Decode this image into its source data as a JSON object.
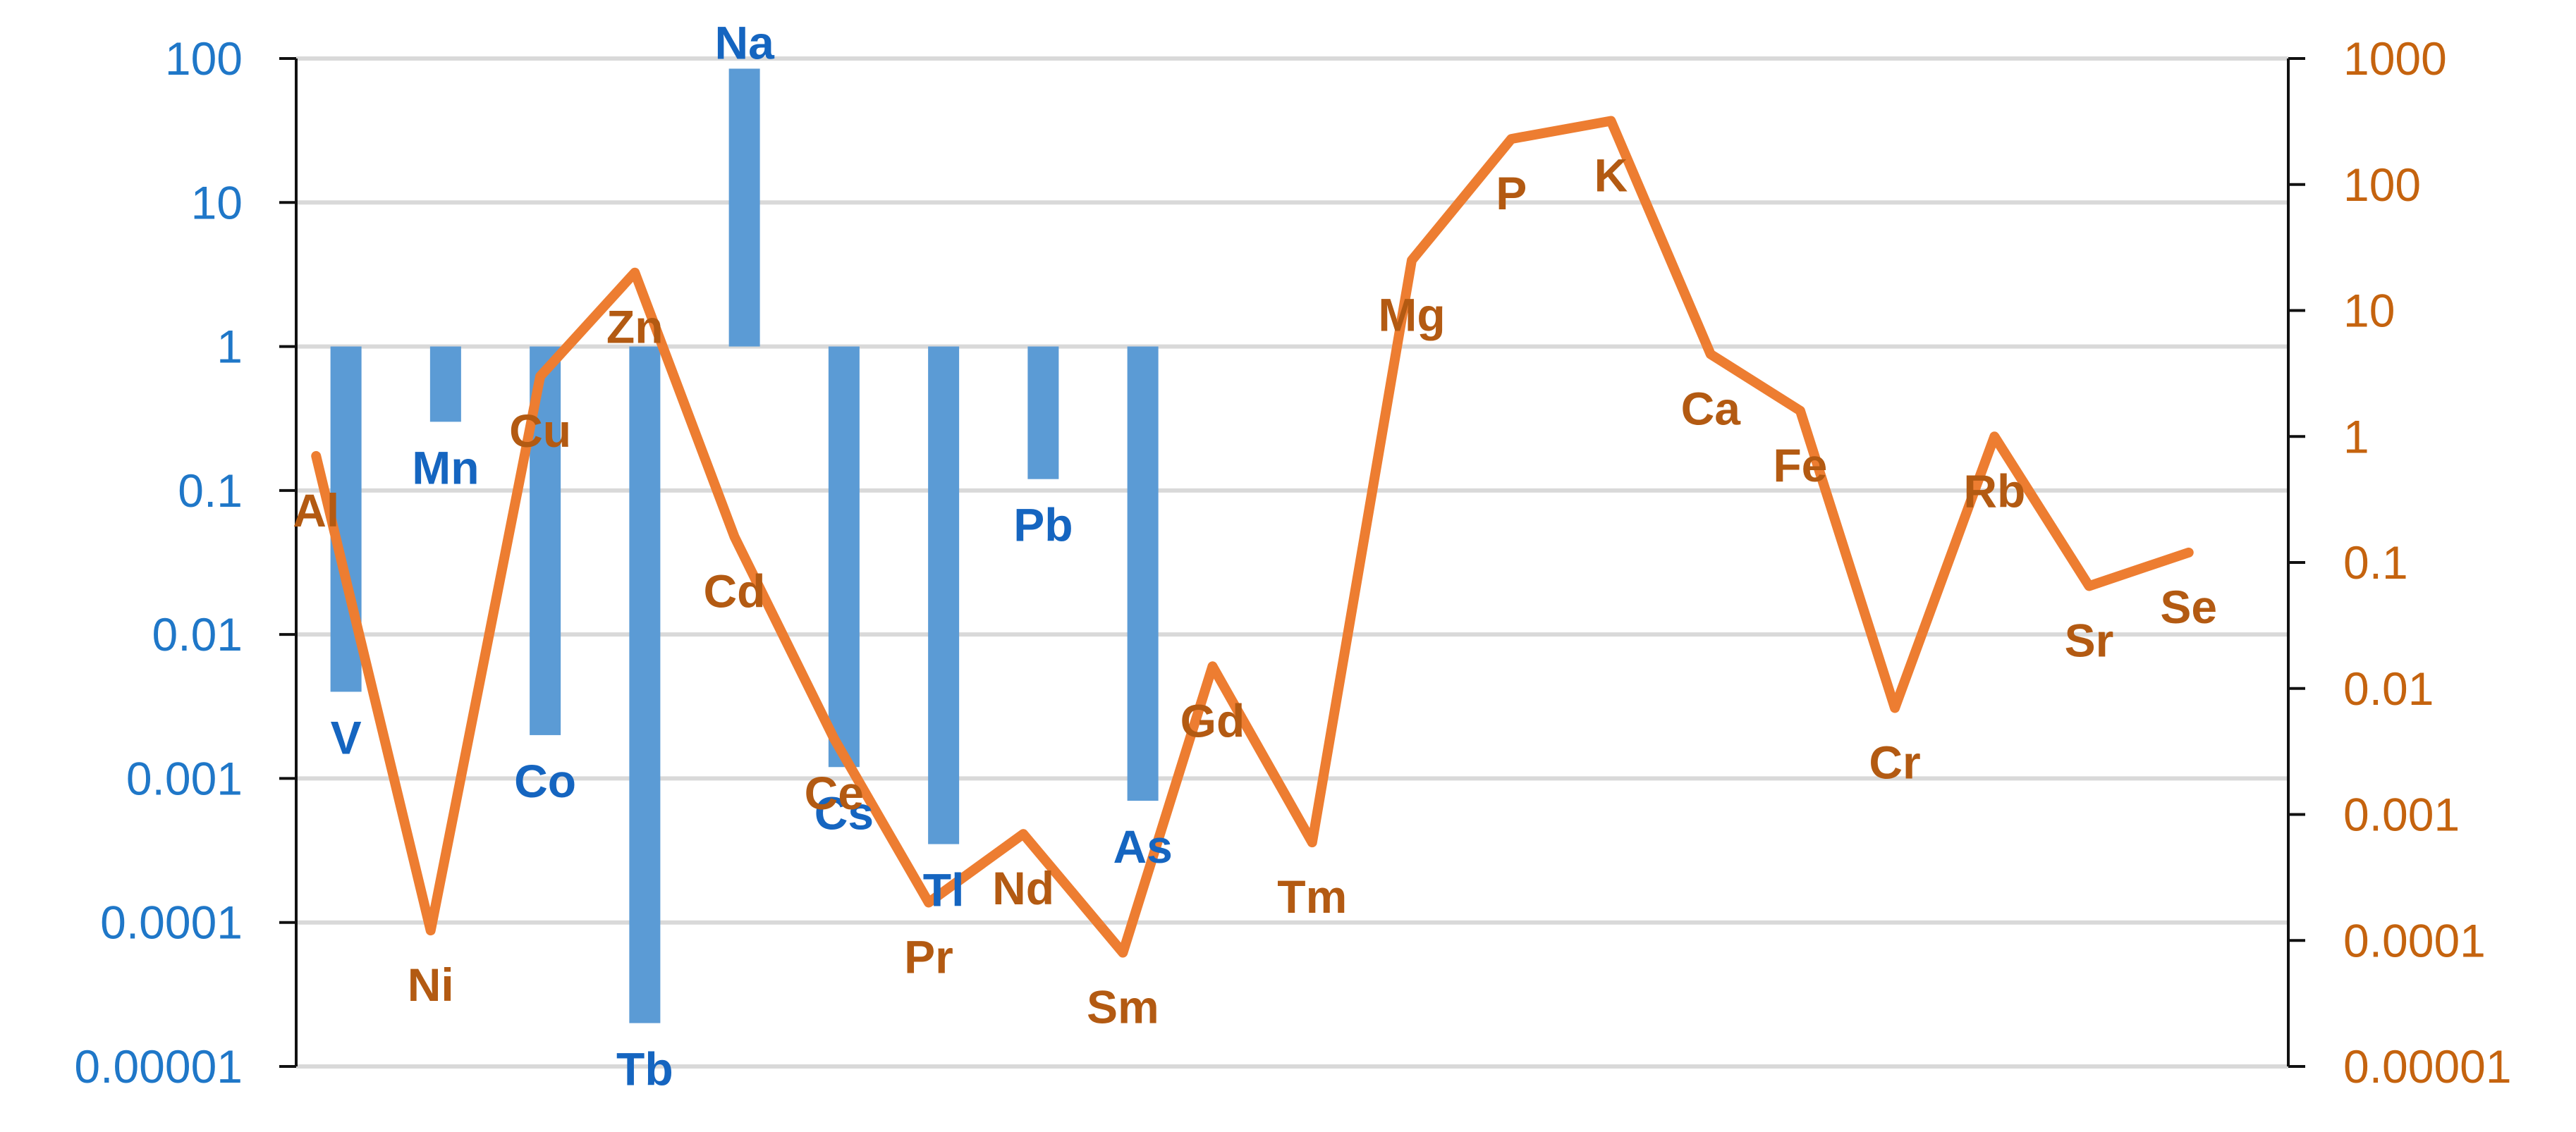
{
  "chart_data": {
    "type": "bar+line",
    "title": "",
    "xlabel": "",
    "y_left": {
      "scale": "log",
      "range": [
        1e-05,
        100
      ],
      "ticks": [
        "100",
        "10",
        "1",
        "0.1",
        "0.01",
        "0.001",
        "0.0001",
        "0.00001"
      ],
      "tick_values": [
        100,
        10,
        1,
        0.1,
        0.01,
        0.001,
        0.0001,
        1e-05
      ]
    },
    "y_right": {
      "scale": "log",
      "range": [
        1e-05,
        1000
      ],
      "ticks": [
        "1000",
        "100",
        "10",
        "1",
        "0.1",
        "0.01",
        "0.001",
        "0.0001",
        "0.00001"
      ],
      "tick_values": [
        1000,
        100,
        10,
        1,
        0.1,
        0.01,
        0.001,
        0.0001,
        1e-05
      ]
    },
    "grid": true,
    "legend": "none",
    "bar_series": {
      "axis": "left",
      "baseline": 1,
      "color": "#5B9BD5",
      "bars": [
        {
          "label": "V",
          "x": 0.5,
          "value": 0.004
        },
        {
          "label": "Mn",
          "x": 1.5,
          "value": 0.3
        },
        {
          "label": "Co",
          "x": 2.5,
          "value": 0.002
        },
        {
          "label": "Tb",
          "x": 3.5,
          "value": 2e-05
        },
        {
          "label": "Na",
          "x": 4.5,
          "value": 85
        },
        {
          "label": "Cs",
          "x": 5.5,
          "value": 0.0012
        },
        {
          "label": "Tl",
          "x": 6.5,
          "value": 0.00035
        },
        {
          "label": "Pb",
          "x": 7.5,
          "value": 0.12
        },
        {
          "label": "As",
          "x": 8.5,
          "value": 0.0007
        }
      ]
    },
    "line_series": {
      "axis": "right",
      "color": "#ED7D31",
      "points": [
        {
          "label": "Al",
          "x": 0.2,
          "value": 0.7
        },
        {
          "label": "Ni",
          "x": 1.35,
          "value": 0.00012
        },
        {
          "label": "Cu",
          "x": 2.45,
          "value": 3
        },
        {
          "label": "Zn",
          "x": 3.4,
          "value": 20
        },
        {
          "label": "Cd",
          "x": 4.4,
          "value": 0.16
        },
        {
          "label": "Ce",
          "x": 5.4,
          "value": 0.004
        },
        {
          "label": "Pr",
          "x": 6.35,
          "value": 0.0002
        },
        {
          "label": "Nd",
          "x": 7.3,
          "value": 0.0007
        },
        {
          "label": "Sm",
          "x": 8.3,
          "value": 8e-05
        },
        {
          "label": "Gd",
          "x": 9.2,
          "value": 0.015
        },
        {
          "label": "Tm",
          "x": 10.2,
          "value": 0.0006
        },
        {
          "label": "Mg",
          "x": 11.2,
          "value": 25
        },
        {
          "label": "P",
          "x": 12.2,
          "value": 230
        },
        {
          "label": "K",
          "x": 13.2,
          "value": 320
        },
        {
          "label": "Ca",
          "x": 14.2,
          "value": 4.5
        },
        {
          "label": "Fe",
          "x": 15.1,
          "value": 1.6
        },
        {
          "label": "Cr",
          "x": 16.05,
          "value": 0.007
        },
        {
          "label": "Rb",
          "x": 17.05,
          "value": 1
        },
        {
          "label": "Sr",
          "x": 18.0,
          "value": 0.065
        },
        {
          "label": "Se",
          "x": 19.0,
          "value": 0.12
        }
      ]
    }
  }
}
